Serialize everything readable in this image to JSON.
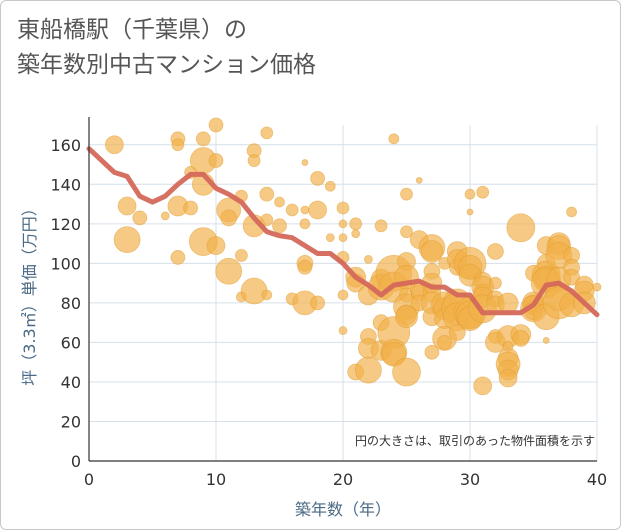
{
  "title_line1": "東船橋駅（千葉県）の",
  "title_line2": "築年数別中古マンション価格",
  "note": "円の大きさは、取引のあった物件面積を示す",
  "chart_data": {
    "type": "scatter",
    "title": "東船橋駅（千葉県）の築年数別中古マンション価格",
    "xlabel": "築年数（年）",
    "ylabel": "坪（3.3㎡）単価（万円）",
    "xlim": [
      0,
      40
    ],
    "ylim": [
      0,
      170
    ],
    "x_ticks": [
      0,
      10,
      20,
      30,
      40
    ],
    "y_ticks": [
      0,
      20,
      40,
      60,
      80,
      100,
      120,
      140,
      160
    ],
    "grid": true,
    "colors": {
      "bubble": "#f2b14a",
      "bubble_stroke": "#e09a2c",
      "line": "#d4685a",
      "grid": "#d6e0ea",
      "axis": "#333333"
    },
    "series": [
      {
        "kind": "line",
        "values": [
          [
            0,
            158
          ],
          [
            1,
            152
          ],
          [
            2,
            146
          ],
          [
            3,
            144
          ],
          [
            4,
            134
          ],
          [
            5,
            131
          ],
          [
            6,
            134
          ],
          [
            7,
            140
          ],
          [
            8,
            145
          ],
          [
            9,
            145
          ],
          [
            10,
            138
          ],
          [
            11,
            135
          ],
          [
            12,
            131
          ],
          [
            13,
            123
          ],
          [
            14,
            116
          ],
          [
            15,
            114
          ],
          [
            16,
            113
          ],
          [
            17,
            109
          ],
          [
            18,
            105
          ],
          [
            19,
            105
          ],
          [
            20,
            100
          ],
          [
            21,
            93
          ],
          [
            22,
            89
          ],
          [
            23,
            84
          ],
          [
            24,
            89
          ],
          [
            25,
            90
          ],
          [
            26,
            91
          ],
          [
            27,
            88
          ],
          [
            28,
            88
          ],
          [
            29,
            84
          ],
          [
            30,
            84
          ],
          [
            31,
            75
          ],
          [
            32,
            75
          ],
          [
            33,
            75
          ],
          [
            34,
            75
          ],
          [
            35,
            79
          ],
          [
            36,
            89
          ],
          [
            37,
            90
          ],
          [
            38,
            86
          ],
          [
            39,
            80
          ],
          [
            40,
            74
          ]
        ]
      },
      {
        "kind": "bubbles",
        "points": [
          [
            2,
            160,
            9
          ],
          [
            3,
            129,
            9
          ],
          [
            3,
            112,
            13
          ],
          [
            4,
            123,
            7
          ],
          [
            6,
            124,
            4
          ],
          [
            7,
            163,
            7
          ],
          [
            7,
            160,
            6
          ],
          [
            7,
            129,
            10
          ],
          [
            7,
            103,
            7
          ],
          [
            8,
            128,
            7
          ],
          [
            8,
            146,
            6
          ],
          [
            9,
            163,
            7
          ],
          [
            9,
            152,
            13
          ],
          [
            9,
            140,
            11
          ],
          [
            9,
            111,
            14
          ],
          [
            10,
            170,
            7
          ],
          [
            10,
            152,
            7
          ],
          [
            10,
            109,
            9
          ],
          [
            11,
            127,
            12
          ],
          [
            11,
            123,
            8
          ],
          [
            11,
            96,
            13
          ],
          [
            12,
            134,
            6
          ],
          [
            12,
            104,
            6
          ],
          [
            12,
            83,
            5
          ],
          [
            13,
            157,
            7
          ],
          [
            13,
            152,
            6
          ],
          [
            13,
            119,
            11
          ],
          [
            13,
            86,
            13
          ],
          [
            14,
            166,
            6
          ],
          [
            14,
            135,
            7
          ],
          [
            14,
            122,
            6
          ],
          [
            14,
            84,
            5
          ],
          [
            15,
            131,
            5
          ],
          [
            15,
            119,
            7
          ],
          [
            16,
            127,
            6
          ],
          [
            16,
            82,
            6
          ],
          [
            17,
            151,
            3
          ],
          [
            17,
            127,
            4
          ],
          [
            17,
            120,
            5
          ],
          [
            17,
            100,
            8
          ],
          [
            17,
            98,
            7
          ],
          [
            17,
            80,
            12
          ],
          [
            18,
            143,
            7
          ],
          [
            18,
            127,
            9
          ],
          [
            18,
            80,
            7
          ],
          [
            19,
            139,
            5
          ],
          [
            19,
            113,
            4
          ],
          [
            20,
            128,
            6
          ],
          [
            20,
            120,
            4
          ],
          [
            20,
            113,
            4
          ],
          [
            20,
            103,
            6
          ],
          [
            20,
            84,
            5
          ],
          [
            20,
            66,
            4
          ],
          [
            21,
            120,
            6
          ],
          [
            21,
            115,
            4
          ],
          [
            21,
            93,
            10
          ],
          [
            21,
            90,
            9
          ],
          [
            21,
            45,
            8
          ],
          [
            22,
            102,
            4
          ],
          [
            22,
            84,
            10
          ],
          [
            22,
            63,
            8
          ],
          [
            22,
            57,
            10
          ],
          [
            22,
            46,
            13
          ],
          [
            23,
            119,
            6
          ],
          [
            23,
            92,
            10
          ],
          [
            23,
            88,
            13
          ],
          [
            23,
            70,
            8
          ],
          [
            23,
            56,
            10
          ],
          [
            24,
            163,
            5
          ],
          [
            24,
            95,
            18
          ],
          [
            24,
            88,
            15
          ],
          [
            24,
            65,
            16
          ],
          [
            24,
            55,
            13
          ],
          [
            24,
            54,
            12
          ],
          [
            25,
            135,
            6
          ],
          [
            25,
            116,
            6
          ],
          [
            25,
            101,
            9
          ],
          [
            25,
            93,
            12
          ],
          [
            25,
            84,
            7
          ],
          [
            25,
            78,
            13
          ],
          [
            25,
            74,
            10
          ],
          [
            25,
            73,
            11
          ],
          [
            25,
            45,
            14
          ],
          [
            26,
            142,
            3
          ],
          [
            26,
            112,
            9
          ],
          [
            26,
            87,
            9
          ],
          [
            26,
            85,
            8
          ],
          [
            26,
            80,
            8
          ],
          [
            27,
            108,
            13
          ],
          [
            27,
            106,
            11
          ],
          [
            27,
            96,
            8
          ],
          [
            27,
            90,
            10
          ],
          [
            27,
            85,
            9
          ],
          [
            27,
            80,
            11
          ],
          [
            27,
            73,
            9
          ],
          [
            27,
            55,
            7
          ],
          [
            28,
            100,
            6
          ],
          [
            28,
            79,
            13
          ],
          [
            28,
            77,
            11
          ],
          [
            28,
            72,
            10
          ],
          [
            28,
            62,
            12
          ],
          [
            28,
            60,
            7
          ],
          [
            29,
            106,
            10
          ],
          [
            29,
            102,
            10
          ],
          [
            29,
            98,
            8
          ],
          [
            29,
            80,
            14
          ],
          [
            29,
            77,
            16
          ],
          [
            29,
            73,
            14
          ],
          [
            29,
            65,
            8
          ],
          [
            30,
            135,
            5
          ],
          [
            30,
            126,
            3
          ],
          [
            30,
            100,
            16
          ],
          [
            30,
            98,
            12
          ],
          [
            30,
            94,
            11
          ],
          [
            30,
            75,
            16
          ],
          [
            30,
            74,
            14
          ],
          [
            30,
            72,
            12
          ],
          [
            31,
            136,
            6
          ],
          [
            31,
            91,
            9
          ],
          [
            31,
            88,
            11
          ],
          [
            31,
            85,
            9
          ],
          [
            31,
            83,
            10
          ],
          [
            31,
            77,
            14
          ],
          [
            31,
            38,
            9
          ],
          [
            32,
            106,
            8
          ],
          [
            32,
            90,
            6
          ],
          [
            32,
            82,
            8
          ],
          [
            32,
            79,
            9
          ],
          [
            32,
            63,
            7
          ],
          [
            32,
            60,
            10
          ],
          [
            33,
            80,
            10
          ],
          [
            33,
            63,
            11
          ],
          [
            33,
            58,
            5
          ],
          [
            33,
            52,
            10
          ],
          [
            33,
            49,
            12
          ],
          [
            33,
            46,
            10
          ],
          [
            33,
            42,
            9
          ],
          [
            34,
            118,
            14
          ],
          [
            34,
            64,
            10
          ],
          [
            34,
            62,
            8
          ],
          [
            35,
            95,
            8
          ],
          [
            35,
            80,
            11
          ],
          [
            35,
            79,
            10
          ],
          [
            35,
            77,
            13
          ],
          [
            35,
            76,
            9
          ],
          [
            36,
            109,
            9
          ],
          [
            36,
            100,
            9
          ],
          [
            36,
            94,
            14
          ],
          [
            36,
            92,
            13
          ],
          [
            36,
            90,
            15
          ],
          [
            36,
            73,
            13
          ],
          [
            36,
            61,
            3
          ],
          [
            37,
            110,
            11
          ],
          [
            37,
            108,
            12
          ],
          [
            37,
            104,
            13
          ],
          [
            37,
            92,
            12
          ],
          [
            37,
            83,
            14
          ],
          [
            37,
            80,
            16
          ],
          [
            38,
            126,
            5
          ],
          [
            38,
            104,
            8
          ],
          [
            38,
            98,
            8
          ],
          [
            38,
            93,
            8
          ],
          [
            38,
            79,
            12
          ],
          [
            39,
            89,
            9
          ],
          [
            39,
            86,
            10
          ],
          [
            39,
            80,
            11
          ],
          [
            40,
            88,
            4
          ]
        ]
      }
    ]
  }
}
